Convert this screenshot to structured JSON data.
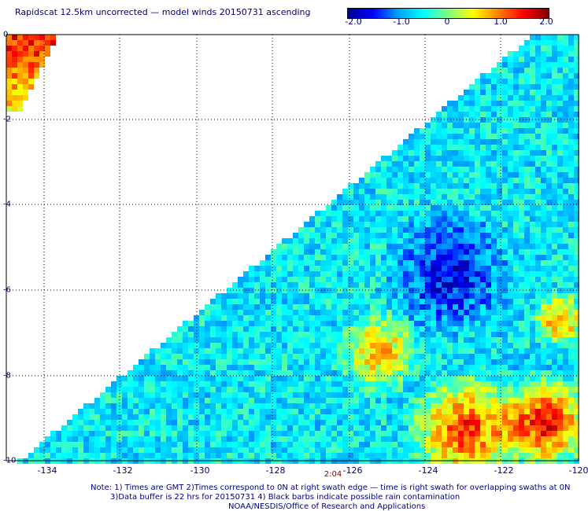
{
  "title": "Rapidscat 12.5km uncorrected — model winds 20150731 ascending",
  "colorbar": {
    "labels": [
      "-2.0",
      "-1.0",
      "0",
      "1.0",
      "2.0"
    ],
    "stops": [
      "#00008f",
      "#0000ff",
      "#00a0ff",
      "#00ffff",
      "#7fff7f",
      "#ffff00",
      "#ff8000",
      "#ff0000",
      "#800000"
    ],
    "range": [
      -2.0,
      2.0
    ]
  },
  "map": {
    "lon_range": [
      -135,
      -120
    ],
    "lat_range": [
      -10,
      0
    ],
    "x_ticks": [
      "-134",
      "-132",
      "-130",
      "-128",
      "-126",
      "-124",
      "-122",
      "-120"
    ],
    "y_ticks": [
      "0",
      "-2",
      "-4",
      "-6",
      "-8",
      "-10"
    ],
    "grid": "dotted",
    "time_label": "2:04"
  },
  "notes": [
    "Note: 1) Times are GMT 2)Times correspond to 0N at right swath edge — time is right swath for overlapping swaths at 0N",
    "3)Data buffer is 22 hrs for 20150731 4) Black barbs indicate possible rain contamination",
    "NOAA/NESDIS/Office of Research and Applications"
  ],
  "colors": {
    "text": "#000080",
    "time": "#8b0000",
    "grid": "#000000"
  }
}
